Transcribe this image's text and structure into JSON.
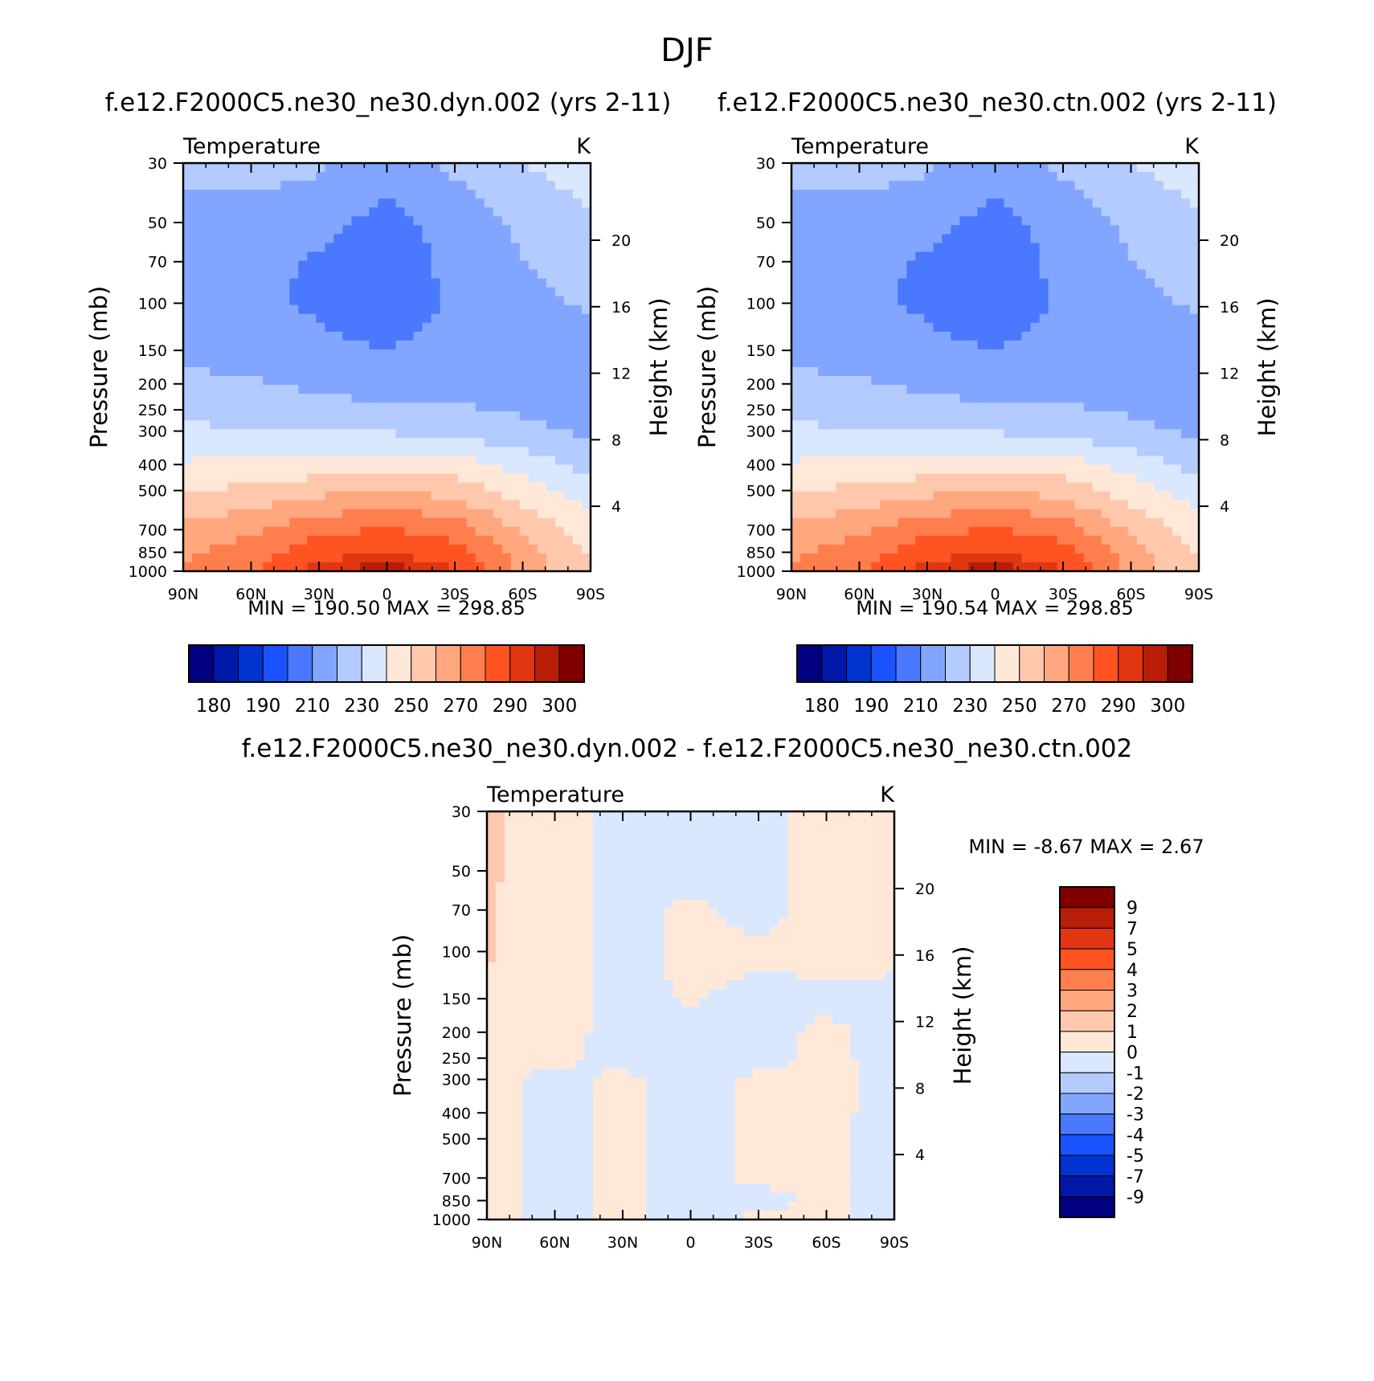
{
  "figure_title": "DJF",
  "colors": {
    "abs": [
      "#000080",
      "#0019a8",
      "#0033d0",
      "#1a52ff",
      "#4a78ff",
      "#82a6ff",
      "#b3cbff",
      "#d9e8ff",
      "#ffe8d7",
      "#ffc8ad",
      "#ffa77f",
      "#ff7e4d",
      "#ff5422",
      "#e03712",
      "#b81d08",
      "#800000"
    ],
    "diff": [
      "#000080",
      "#0019a8",
      "#0033d0",
      "#1a52ff",
      "#4a78ff",
      "#82a6ff",
      "#b3cbff",
      "#d9e8ff",
      "#ffe8d7",
      "#ffc8ad",
      "#ffa77f",
      "#ff7e4d",
      "#ff5422",
      "#e03712",
      "#b81d08",
      "#800000"
    ]
  },
  "chart_data": [
    {
      "type": "heatmap",
      "title": "f.e12.F2000C5.ne30_ne30.dyn.002 (yrs 2-11)",
      "subtitle_left": "Temperature",
      "units": "K",
      "xlabel": "",
      "ylabel": "Pressure (mb)",
      "y2label": "Height (km)",
      "x_ticks": [
        "90N",
        "60N",
        "30N",
        "0",
        "30S",
        "60S",
        "90S"
      ],
      "y_ticks": [
        30,
        50,
        70,
        100,
        150,
        200,
        250,
        300,
        400,
        500,
        700,
        850,
        1000
      ],
      "y2_ticks": [
        4,
        8,
        12,
        16,
        20
      ],
      "ylim": [
        1000,
        30
      ],
      "y_scale": "log",
      "stats": "MIN = 190.50   MAX = 298.85",
      "colorbar_ticks": [
        "180",
        "190",
        "210",
        "230",
        "250",
        "270",
        "290",
        "300"
      ],
      "colorbar_levels": [
        180,
        185,
        190,
        200,
        210,
        220,
        230,
        240,
        250,
        260,
        270,
        280,
        290,
        295,
        300
      ],
      "latitudes": [
        -90,
        -60,
        -30,
        0,
        30,
        60,
        90
      ],
      "pressures": [
        30,
        50,
        70,
        100,
        150,
        200,
        250,
        300,
        400,
        500,
        700,
        850,
        1000
      ],
      "values": [
        [
          222,
          224,
          222,
          213,
          222,
          230,
          236
        ],
        [
          217,
          216,
          213,
          207,
          214,
          222,
          228
        ],
        [
          216,
          213,
          209,
          204,
          213,
          220,
          224
        ],
        [
          215,
          212,
          208,
          203,
          212,
          218,
          221
        ],
        [
          218,
          216,
          213,
          210,
          214,
          216,
          216
        ],
        [
          222,
          221,
          218,
          216,
          216,
          215,
          213
        ],
        [
          227,
          224,
          223,
          222,
          221,
          219,
          216
        ],
        [
          232,
          231,
          230,
          229,
          227,
          222,
          218
        ],
        [
          241,
          242,
          244,
          246,
          244,
          236,
          225
        ],
        [
          250,
          252,
          257,
          260,
          256,
          245,
          234
        ],
        [
          262,
          268,
          277,
          281,
          276,
          258,
          245
        ],
        [
          268,
          275,
          286,
          290,
          284,
          265,
          249
        ],
        [
          270,
          279,
          294,
          299,
          291,
          268,
          249
        ]
      ],
      "lat_order": [
        "90N",
        "60N",
        "30N",
        "0",
        "30S",
        "60S",
        "90S"
      ]
    },
    {
      "type": "heatmap",
      "title": "f.e12.F2000C5.ne30_ne30.ctn.002 (yrs 2-11)",
      "subtitle_left": "Temperature",
      "units": "K",
      "xlabel": "",
      "ylabel": "Pressure (mb)",
      "y2label": "Height (km)",
      "x_ticks": [
        "90N",
        "60N",
        "30N",
        "0",
        "30S",
        "60S",
        "90S"
      ],
      "y_ticks": [
        30,
        50,
        70,
        100,
        150,
        200,
        250,
        300,
        400,
        500,
        700,
        850,
        1000
      ],
      "y2_ticks": [
        4,
        8,
        12,
        16,
        20
      ],
      "ylim": [
        1000,
        30
      ],
      "y_scale": "log",
      "stats": "MIN = 190.54   MAX = 298.85",
      "colorbar_ticks": [
        "180",
        "190",
        "210",
        "230",
        "250",
        "270",
        "290",
        "300"
      ],
      "colorbar_levels": [
        180,
        185,
        190,
        200,
        210,
        220,
        230,
        240,
        250,
        260,
        270,
        280,
        290,
        295,
        300
      ],
      "pressures": [
        30,
        50,
        70,
        100,
        150,
        200,
        250,
        300,
        400,
        500,
        700,
        850,
        1000
      ],
      "values": [
        [
          222,
          224,
          222,
          213,
          222,
          230,
          236
        ],
        [
          217,
          216,
          213,
          207,
          214,
          222,
          228
        ],
        [
          216,
          213,
          209,
          204,
          213,
          220,
          224
        ],
        [
          215,
          212,
          208,
          203,
          212,
          218,
          221
        ],
        [
          218,
          216,
          213,
          210,
          214,
          216,
          216
        ],
        [
          222,
          221,
          218,
          216,
          216,
          215,
          213
        ],
        [
          227,
          224,
          223,
          222,
          221,
          219,
          216
        ],
        [
          232,
          231,
          230,
          229,
          227,
          222,
          218
        ],
        [
          241,
          242,
          244,
          246,
          244,
          236,
          225
        ],
        [
          250,
          252,
          257,
          260,
          256,
          245,
          234
        ],
        [
          262,
          268,
          277,
          281,
          276,
          258,
          245
        ],
        [
          268,
          275,
          286,
          290,
          284,
          265,
          249
        ],
        [
          270,
          279,
          294,
          299,
          291,
          268,
          249
        ]
      ],
      "lat_order": [
        "90N",
        "60N",
        "30N",
        "0",
        "30S",
        "60S",
        "90S"
      ]
    },
    {
      "type": "heatmap",
      "title": "f.e12.F2000C5.ne30_ne30.dyn.002 - f.e12.F2000C5.ne30_ne30.ctn.002",
      "subtitle_left": "Temperature",
      "units": "K",
      "xlabel": "",
      "ylabel": "Pressure (mb)",
      "y2label": "Height (km)",
      "x_ticks": [
        "90N",
        "60N",
        "30N",
        "0",
        "30S",
        "60S",
        "90S"
      ],
      "y_ticks": [
        30,
        50,
        70,
        100,
        150,
        200,
        250,
        300,
        400,
        500,
        700,
        850,
        1000
      ],
      "y2_ticks": [
        4,
        8,
        12,
        16,
        20
      ],
      "ylim": [
        1000,
        30
      ],
      "y_scale": "log",
      "stats": "MIN =   -8.67   MAX =     2.67",
      "colorbar_ticks": [
        "9",
        "7",
        "5",
        "4",
        "3",
        "2",
        "1",
        "0",
        "-1",
        "-2",
        "-3",
        "-4",
        "-5",
        "-7",
        "-9"
      ],
      "colorbar_levels": [
        -9,
        -7,
        -5,
        -4,
        -3,
        -2,
        -1,
        0,
        1,
        2,
        3,
        4,
        5,
        7,
        9
      ],
      "pressures": [
        30,
        50,
        70,
        100,
        150,
        200,
        250,
        300,
        400,
        500,
        700,
        850,
        1000
      ],
      "values": [
        [
          1.2,
          0.3,
          -0.3,
          -0.3,
          -0.3,
          0.3,
          0.3
        ],
        [
          1.2,
          0.3,
          -0.3,
          -0.3,
          -0.3,
          0.3,
          0.3
        ],
        [
          1.1,
          0.3,
          -0.3,
          0.2,
          -0.3,
          0.3,
          0.3
        ],
        [
          1.1,
          0.3,
          -0.3,
          0.2,
          0.2,
          0.3,
          0.3
        ],
        [
          0.8,
          0.3,
          -0.3,
          0.1,
          -0.3,
          -0.2,
          -0.3
        ],
        [
          0.3,
          0.3,
          -0.3,
          -0.3,
          -0.3,
          0.2,
          -0.3
        ],
        [
          0.3,
          0.2,
          -0.3,
          -0.3,
          -0.3,
          0.2,
          -0.3
        ],
        [
          0.3,
          -0.3,
          0.2,
          -0.3,
          0.2,
          0.3,
          -0.3
        ],
        [
          0.3,
          -0.3,
          0.2,
          -0.3,
          0.2,
          0.2,
          -0.3
        ],
        [
          0.3,
          -0.3,
          0.2,
          -0.3,
          0.2,
          0.2,
          -0.3
        ],
        [
          0.3,
          -0.3,
          0.2,
          -0.3,
          0.2,
          0.2,
          -0.3
        ],
        [
          0.3,
          -0.3,
          0.2,
          -0.3,
          -0.3,
          0.2,
          -0.3
        ],
        [
          0.3,
          -0.3,
          0.2,
          -0.3,
          0.2,
          0.2,
          -0.3
        ]
      ],
      "lat_order": [
        "90N",
        "60N",
        "30N",
        "0",
        "30S",
        "60S",
        "90S"
      ]
    }
  ]
}
